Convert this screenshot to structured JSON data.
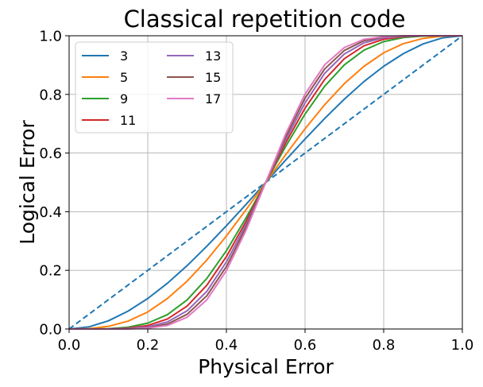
{
  "chart_data": {
    "type": "line",
    "title": "Classical repetition code",
    "xlabel": "Physical Error",
    "ylabel": "Logical Error",
    "xlim": [
      0.0,
      1.0
    ],
    "ylim": [
      0.0,
      1.0
    ],
    "xticks": [
      "0.0",
      "0.2",
      "0.4",
      "0.6",
      "0.8",
      "1.0"
    ],
    "yticks": [
      "0.0",
      "0.2",
      "0.4",
      "0.6",
      "0.8",
      "1.0"
    ],
    "grid": true,
    "legend": {
      "placement": "top-left",
      "columns": 2
    },
    "x": [
      0.0,
      0.05,
      0.1,
      0.15,
      0.2,
      0.25,
      0.3,
      0.35,
      0.4,
      0.45,
      0.5,
      0.55,
      0.6,
      0.65,
      0.7,
      0.75,
      0.8,
      0.85,
      0.9,
      0.95,
      1.0
    ],
    "series": [
      {
        "name": "3",
        "color": "#1f77b4",
        "style": "solid",
        "values": [
          0.0,
          0.007,
          0.028,
          0.061,
          0.104,
          0.156,
          0.216,
          0.282,
          0.352,
          0.425,
          0.5,
          0.575,
          0.648,
          0.718,
          0.784,
          0.844,
          0.896,
          0.939,
          0.972,
          0.993,
          1.0
        ]
      },
      {
        "name": "5",
        "color": "#ff7f0e",
        "style": "solid",
        "values": [
          0.0,
          0.001,
          0.009,
          0.027,
          0.058,
          0.104,
          0.163,
          0.235,
          0.317,
          0.407,
          0.5,
          0.593,
          0.683,
          0.765,
          0.837,
          0.896,
          0.942,
          0.973,
          0.991,
          0.999,
          1.0
        ]
      },
      {
        "name": "9",
        "color": "#2ca02c",
        "style": "solid",
        "values": [
          0.0,
          0.0,
          0.001,
          0.006,
          0.02,
          0.049,
          0.099,
          0.172,
          0.267,
          0.379,
          0.5,
          0.621,
          0.733,
          0.828,
          0.901,
          0.951,
          0.98,
          0.994,
          0.999,
          1.0,
          1.0
        ]
      },
      {
        "name": "11",
        "color": "#d62728",
        "style": "solid",
        "values": [
          0.0,
          0.0,
          0.0,
          0.003,
          0.012,
          0.034,
          0.078,
          0.149,
          0.247,
          0.367,
          0.5,
          0.633,
          0.753,
          0.851,
          0.922,
          0.966,
          0.988,
          0.997,
          1.0,
          1.0,
          1.0
        ]
      },
      {
        "name": "13",
        "color": "#9467bd",
        "style": "solid",
        "values": [
          0.0,
          0.0,
          0.0,
          0.002,
          0.007,
          0.024,
          0.062,
          0.128,
          0.229,
          0.356,
          0.5,
          0.644,
          0.771,
          0.872,
          0.938,
          0.976,
          0.993,
          0.998,
          1.0,
          1.0,
          1.0
        ]
      },
      {
        "name": "15",
        "color": "#8c564b",
        "style": "solid",
        "values": [
          0.0,
          0.0,
          0.0,
          0.001,
          0.004,
          0.017,
          0.05,
          0.113,
          0.213,
          0.346,
          0.5,
          0.654,
          0.787,
          0.887,
          0.95,
          0.983,
          0.996,
          0.999,
          1.0,
          1.0,
          1.0
        ]
      },
      {
        "name": "17",
        "color": "#e377c2",
        "style": "solid",
        "values": [
          0.0,
          0.0,
          0.0,
          0.0,
          0.003,
          0.012,
          0.04,
          0.099,
          0.199,
          0.337,
          0.5,
          0.663,
          0.801,
          0.901,
          0.96,
          0.988,
          0.997,
          1.0,
          1.0,
          1.0,
          1.0
        ]
      }
    ],
    "reference_line": {
      "color": "#1f77b4",
      "style": "dashed",
      "x": [
        0.0,
        1.0
      ],
      "y": [
        0.0,
        1.0
      ]
    }
  }
}
